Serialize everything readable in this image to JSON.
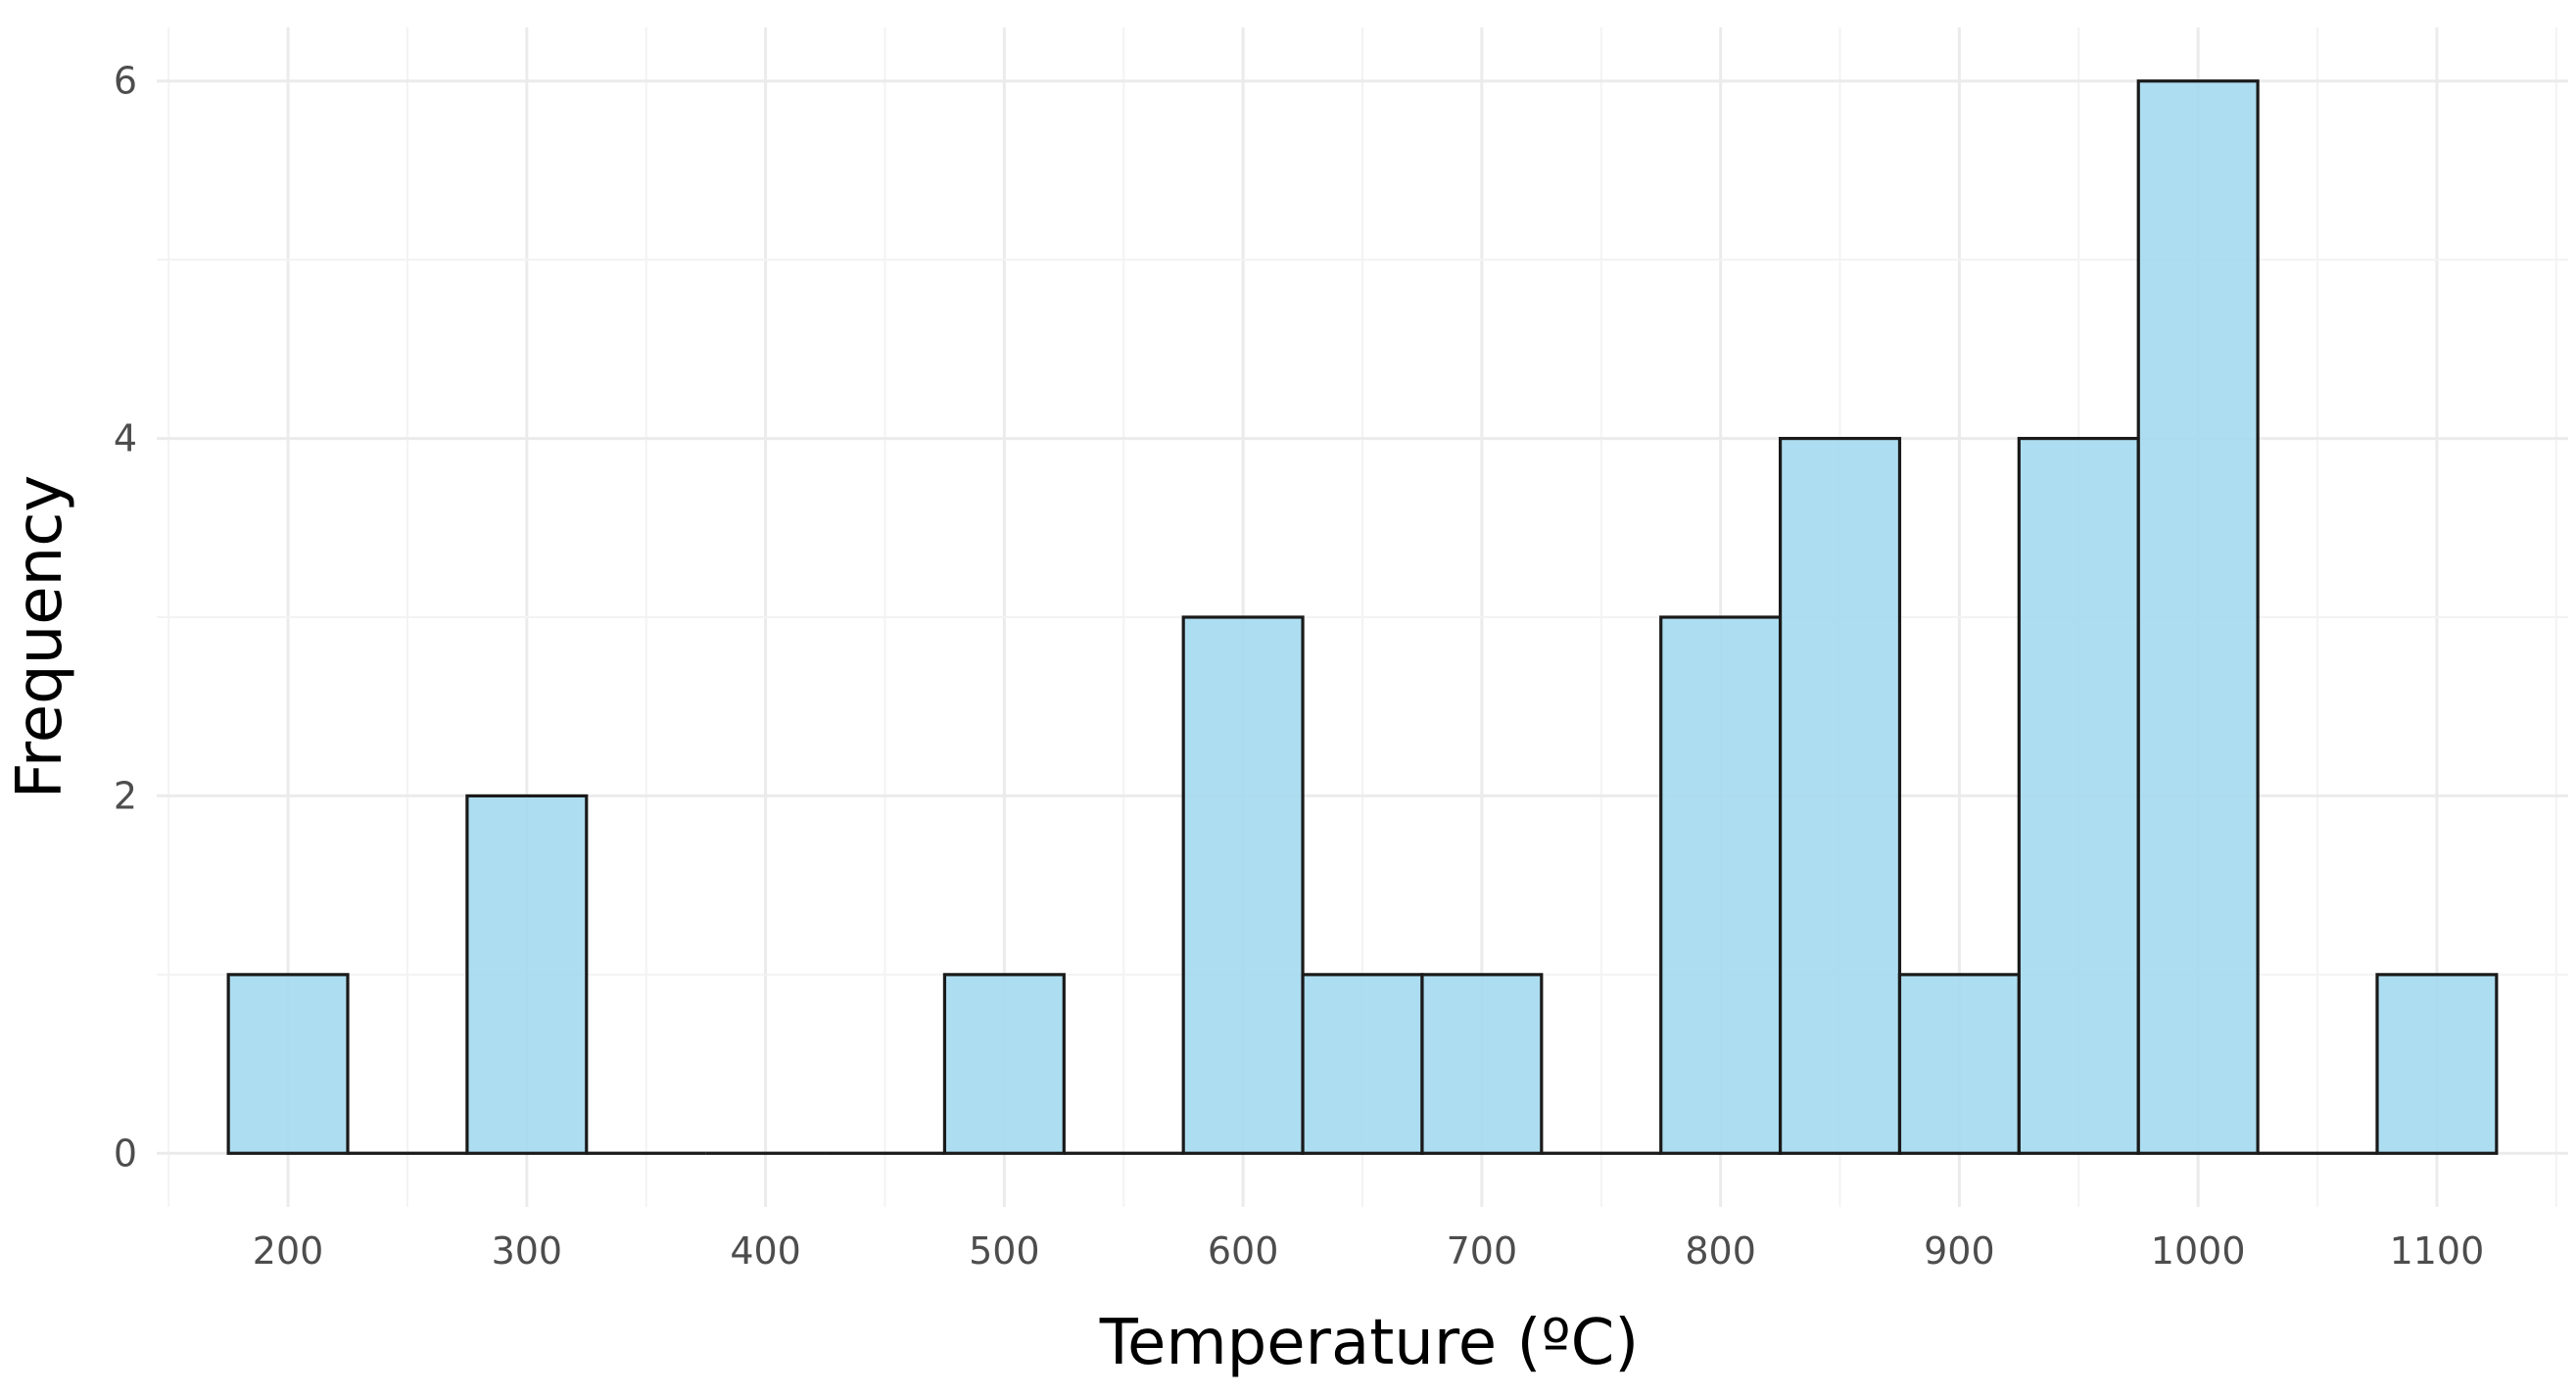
{
  "chart_data": {
    "type": "bar",
    "subtype": "histogram",
    "title": "",
    "xlabel": "Temperature (ºC)",
    "ylabel": "Frequency",
    "bin_width": 50,
    "bin_centers": [
      200,
      250,
      300,
      350,
      400,
      450,
      500,
      550,
      600,
      650,
      700,
      750,
      800,
      850,
      900,
      950,
      1000,
      1050,
      1100
    ],
    "values": [
      1,
      0,
      2,
      0,
      0,
      0,
      1,
      0,
      3,
      1,
      1,
      0,
      3,
      4,
      1,
      4,
      6,
      0,
      1
    ],
    "xlim": [
      145,
      1155
    ],
    "ylim": [
      -0.3,
      6.3
    ],
    "x_ticks": [
      200,
      300,
      400,
      500,
      600,
      700,
      800,
      900,
      1000,
      1100
    ],
    "x_tick_labels": [
      "200",
      "300",
      "400",
      "500",
      "600",
      "700",
      "800",
      "900",
      "1000",
      "1100"
    ],
    "y_ticks": [
      0,
      2,
      4,
      6
    ],
    "y_tick_labels": [
      "0",
      "2",
      "4",
      "6"
    ],
    "grid": true,
    "legend": "none",
    "colors": {
      "bar_fill": "#a2d8ee",
      "bar_outline": "#1a1a1a",
      "grid_major": "#ebebeb",
      "grid_minor": "#f3f3f3",
      "tick_text": "#4d4d4d",
      "axis_title": "#000000"
    }
  }
}
